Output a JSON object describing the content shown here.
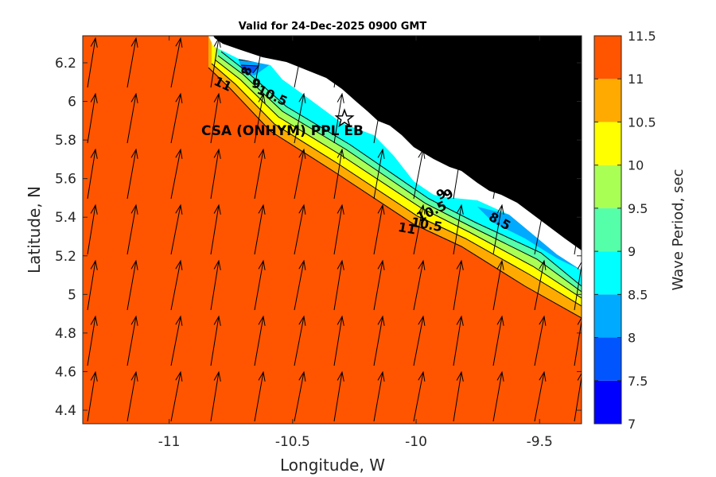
{
  "title": "Valid for 24-Dec-2025 0900 GMT",
  "station": {
    "label": "CSA (ONHYM) PPL EB",
    "lon": -10.29,
    "lat": 5.91
  },
  "colors": {
    "ocean_field": "#FF5500",
    "land": "#000000",
    "coast_strip": "#FFFFFF",
    "arrows": "#000000"
  },
  "chart_data": {
    "type": "heatmap",
    "title": "Valid for 24-Dec-2025 0900 GMT",
    "xlabel": "Longitude, W",
    "ylabel": "Latitude, N",
    "xlim": [
      -11.35,
      -9.33
    ],
    "ylim": [
      4.33,
      6.34
    ],
    "xticks": [
      -11,
      -10.5,
      -10,
      -9.5
    ],
    "xtick_labels": [
      "-11",
      "-10.5",
      "-10",
      "-9.5"
    ],
    "yticks": [
      4.4,
      4.6,
      4.8,
      5,
      5.2,
      5.4,
      5.6,
      5.8,
      6,
      6.2
    ],
    "ytick_labels": [
      "4.4",
      "4.6",
      "4.8",
      "5",
      "5.2",
      "5.4",
      "5.6",
      "5.8",
      "6",
      "6.2"
    ],
    "colorbar": {
      "label": "Wave Period, sec",
      "ticks": [
        "7",
        "7.5",
        "8",
        "8.5",
        "9",
        "9.5",
        "10",
        "10.5",
        "11",
        "11.5"
      ],
      "levels": [
        {
          "from": 7,
          "to": 7.5,
          "color": "#0000FF"
        },
        {
          "from": 7.5,
          "to": 8,
          "color": "#0055FF"
        },
        {
          "from": 8,
          "to": 8.5,
          "color": "#00AAFF"
        },
        {
          "from": 8.5,
          "to": 9,
          "color": "#00FFFF"
        },
        {
          "from": 9,
          "to": 9.5,
          "color": "#55FFAA"
        },
        {
          "from": 9.5,
          "to": 10,
          "color": "#AAFF55"
        },
        {
          "from": 10,
          "to": 10.5,
          "color": "#FFFF00"
        },
        {
          "from": 10.5,
          "to": 11,
          "color": "#FFAA00"
        },
        {
          "from": 11,
          "to": 11.5,
          "color": "#FF5500"
        }
      ]
    },
    "contour_labels": [
      {
        "text": "8",
        "lon": -10.67,
        "lat": 6.15,
        "angle": -70
      },
      {
        "text": "9",
        "lon": -10.65,
        "lat": 6.07,
        "angle": 10
      },
      {
        "text": "10.5",
        "lon": -10.59,
        "lat": 6.01,
        "angle": 25
      },
      {
        "text": "11",
        "lon": -10.79,
        "lat": 6.07,
        "angle": 25
      },
      {
        "text": "9",
        "lon": -9.89,
        "lat": 5.5,
        "angle": -30
      },
      {
        "text": "9",
        "lon": -9.86,
        "lat": 5.5,
        "angle": -30
      },
      {
        "text": "10.5",
        "lon": -9.93,
        "lat": 5.41,
        "angle": -25
      },
      {
        "text": "10.5",
        "lon": -9.96,
        "lat": 5.34,
        "angle": 10
      },
      {
        "text": "11",
        "lon": -10.04,
        "lat": 5.32,
        "angle": 10
      },
      {
        "text": "8.5",
        "lon": -9.67,
        "lat": 5.36,
        "angle": 30
      }
    ],
    "wave_direction": "arrows pointing toward north-northeast across the domain"
  }
}
